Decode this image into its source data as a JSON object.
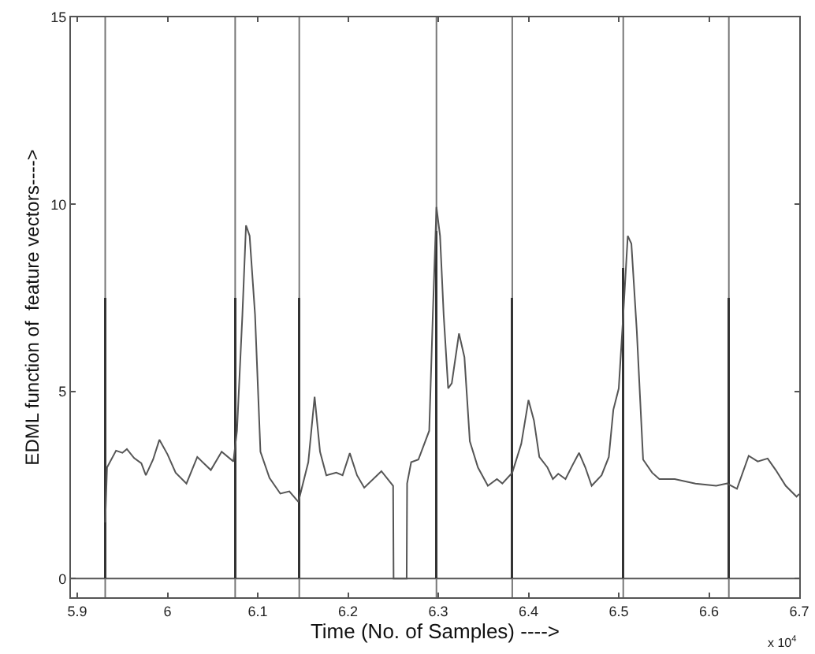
{
  "chart_data": {
    "type": "line",
    "xlabel": "Time (No. of Samples) ---->",
    "ylabel": "EDML function of  feature vectors---->",
    "xlim": [
      5.893,
      6.7
    ],
    "ylim": [
      -0.5,
      15
    ],
    "xticks": [
      5.9,
      6,
      6.1,
      6.2,
      6.3,
      6.4,
      6.5,
      6.6,
      6.7
    ],
    "yticks": [
      0,
      5,
      10,
      15
    ],
    "marker": "none",
    "line_style": "solid",
    "annotations": [
      "x 10$^{4}$"
    ],
    "ref_lines": [
      {
        "axis": "y",
        "value": 0,
        "color": "#555555"
      },
      {
        "axis": "x",
        "value": 5.931,
        "color": "#777777"
      },
      {
        "axis": "x",
        "value": 6.075,
        "color": "#777777"
      },
      {
        "axis": "x",
        "value": 6.146,
        "color": "#777777"
      },
      {
        "axis": "x",
        "value": 6.298,
        "color": "#777777"
      },
      {
        "axis": "x",
        "value": 6.382,
        "color": "#777777"
      },
      {
        "axis": "x",
        "value": 6.505,
        "color": "#777777"
      },
      {
        "axis": "x",
        "value": 6.622,
        "color": "#777777"
      }
    ],
    "series": [
      {
        "color": "#555555",
        "x": [
          5.931,
          5.933,
          5.943,
          5.95,
          5.955,
          5.963,
          5.971,
          5.976,
          5.984,
          5.991,
          6.0,
          6.009,
          6.021,
          6.033,
          6.048,
          6.06,
          6.073,
          6.077,
          6.083,
          6.087,
          6.091,
          6.097,
          6.103,
          6.113,
          6.125,
          6.135,
          6.145,
          6.156,
          6.163,
          6.169,
          6.176,
          6.187,
          6.194,
          6.202,
          6.21,
          6.218,
          6.237,
          6.25,
          6.2505,
          6.265,
          6.2655,
          6.27,
          6.278,
          6.29,
          6.294,
          6.298,
          6.302,
          6.306,
          6.311,
          6.315,
          6.323,
          6.329,
          6.335,
          6.344,
          6.355,
          6.365,
          6.371,
          6.382,
          6.392,
          6.4,
          6.406,
          6.412,
          6.421,
          6.427,
          6.433,
          6.441,
          6.449,
          6.456,
          6.463,
          6.47,
          6.481,
          6.489,
          6.494,
          6.5,
          6.505,
          6.51,
          6.514,
          6.52,
          6.527,
          6.537,
          6.545,
          6.562,
          6.585,
          6.608,
          6.62,
          6.631,
          6.644,
          6.654,
          6.665,
          6.674,
          6.685,
          6.697,
          6.7
        ],
        "values": [
          1.5,
          2.97,
          3.42,
          3.36,
          3.46,
          3.22,
          3.08,
          2.76,
          3.18,
          3.71,
          3.32,
          2.83,
          2.54,
          3.25,
          2.9,
          3.39,
          3.13,
          3.95,
          7.05,
          9.44,
          9.16,
          7.05,
          3.39,
          2.69,
          2.27,
          2.33,
          2.05,
          3.11,
          4.86,
          3.39,
          2.76,
          2.83,
          2.76,
          3.35,
          2.76,
          2.43,
          2.87,
          2.48,
          0,
          0,
          2.54,
          3.11,
          3.18,
          3.95,
          7.05,
          9.93,
          9.16,
          7.05,
          5.08,
          5.22,
          6.55,
          5.92,
          3.67,
          2.97,
          2.48,
          2.66,
          2.54,
          2.83,
          3.6,
          4.77,
          4.23,
          3.25,
          2.97,
          2.66,
          2.8,
          2.66,
          3.04,
          3.36,
          2.97,
          2.48,
          2.76,
          3.25,
          4.51,
          5.08,
          7.05,
          9.16,
          8.95,
          6.62,
          3.18,
          2.83,
          2.66,
          2.66,
          2.54,
          2.48,
          2.54,
          2.4,
          3.28,
          3.13,
          3.21,
          2.9,
          2.48,
          2.19,
          2.26
        ]
      },
      {
        "type": "bar",
        "color": "#333333",
        "x": [
          5.931,
          6.075,
          6.146,
          6.298,
          6.382,
          6.505,
          6.622
        ],
        "values": [
          7.5,
          7.5,
          7.5,
          9.3,
          7.5,
          8.3,
          7.5
        ]
      }
    ]
  }
}
